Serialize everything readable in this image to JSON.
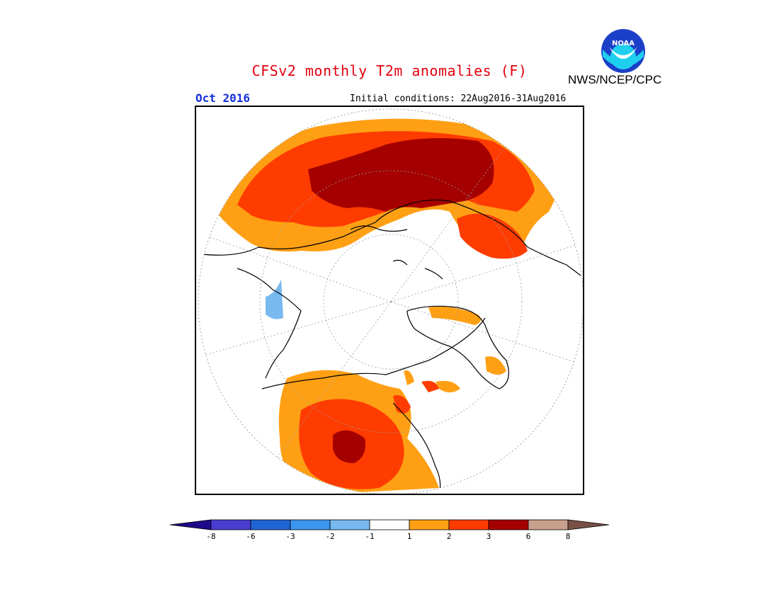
{
  "header": {
    "title": "CFSv2 monthly T2m anomalies (F)",
    "agency": "NWS/NCEP/CPC",
    "logo_text": "NOAA",
    "month": "Oct 2016",
    "initial_conditions": "Initial conditions: 22Aug2016-31Aug2016"
  },
  "colorbar": {
    "labels": [
      "-8",
      "-6",
      "-3",
      "-2",
      "-1",
      "1",
      "2",
      "3",
      "6",
      "8"
    ],
    "colors": [
      "#1f0a8c",
      "#4a3cd1",
      "#1e64d2",
      "#3c96f0",
      "#78b9f0",
      "#ffffff",
      "#ffa014",
      "#ff3c00",
      "#a50000",
      "#c8a08c",
      "#785046"
    ]
  },
  "map_colors": {
    "warm_1_2": "#ffa014",
    "warm_2_3": "#ff3c00",
    "warm_3_6": "#a50000",
    "cool_1_2": "#78b9f0",
    "coast": "#000000",
    "grid": "#9a9a9a"
  }
}
